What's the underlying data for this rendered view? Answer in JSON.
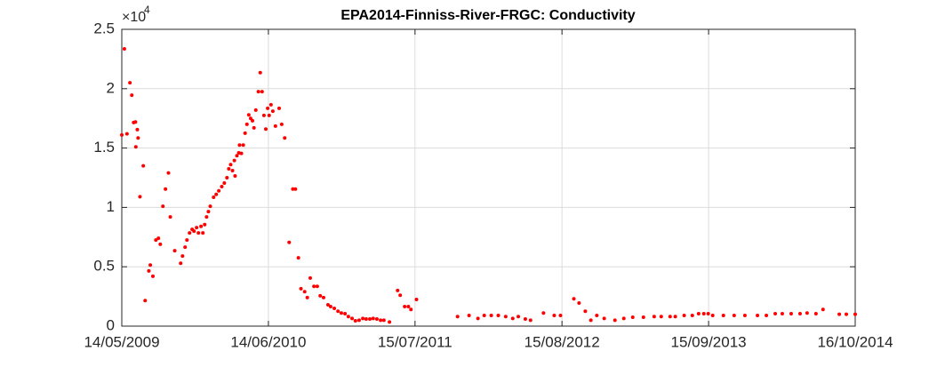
{
  "chart_data": {
    "type": "scatter",
    "title": "EPA2014-Finniss-River-FRGC: Conductivity",
    "y_scale_base": "×10",
    "y_scale_exponent": "4",
    "color": "#ff0000",
    "grid": true,
    "ylim": [
      0,
      25000
    ],
    "yticks": [
      0,
      {
        "value": 5000,
        "label": "0.5"
      },
      {
        "value": 10000,
        "label": "1"
      },
      {
        "value": 15000,
        "label": "1.5"
      },
      {
        "value": 20000,
        "label": "2"
      },
      {
        "value": 25000,
        "label": "2.5"
      }
    ],
    "xlim": [
      "2009-05-14",
      "2014-10-16"
    ],
    "xticks": [
      {
        "value": "2009-05-14",
        "label": "14/05/2009"
      },
      {
        "value": "2010-06-14",
        "label": "14/06/2010"
      },
      {
        "value": "2011-07-15",
        "label": "15/07/2011"
      },
      {
        "value": "2012-08-15",
        "label": "15/08/2012"
      },
      {
        "value": "2013-09-15",
        "label": "15/09/2013"
      },
      {
        "value": "2014-10-16",
        "label": "16/10/2014"
      }
    ],
    "x": [
      "2009-05-14",
      "2009-05-21",
      "2009-05-28",
      "2009-06-05",
      "2009-06-10",
      "2009-06-15",
      "2009-06-20",
      "2009-06-21",
      "2009-06-25",
      "2009-06-27",
      "2009-07-02",
      "2009-07-11",
      "2009-07-16",
      "2009-07-26",
      "2009-07-30",
      "2009-08-06",
      "2009-08-14",
      "2009-08-21",
      "2009-08-26",
      "2009-09-02",
      "2009-09-09",
      "2009-09-17",
      "2009-09-22",
      "2009-10-04",
      "2009-10-20",
      "2009-10-25",
      "2009-11-01",
      "2009-11-06",
      "2009-11-13",
      "2009-11-20",
      "2009-11-25",
      "2009-12-02",
      "2009-12-07",
      "2009-12-14",
      "2009-12-19",
      "2009-12-24",
      "2009-12-29",
      "2010-01-03",
      "2010-01-08",
      "2010-01-17",
      "2010-01-24",
      "2010-01-31",
      "2010-02-08",
      "2010-02-15",
      "2010-02-22",
      "2010-02-27",
      "2010-03-04",
      "2010-03-09",
      "2010-03-14",
      "2010-03-16",
      "2010-03-21",
      "2010-03-26",
      "2010-03-28",
      "2010-04-02",
      "2010-04-07",
      "2010-04-12",
      "2010-04-17",
      "2010-04-22",
      "2010-04-27",
      "2010-05-02",
      "2010-05-06",
      "2010-05-11",
      "2010-05-18",
      "2010-05-23",
      "2010-05-28",
      "2010-06-02",
      "2010-06-07",
      "2010-06-12",
      "2010-06-16",
      "2010-06-21",
      "2010-06-26",
      "2010-07-03",
      "2010-07-13",
      "2010-07-20",
      "2010-07-28",
      "2010-08-09",
      "2010-08-19",
      "2010-08-26",
      "2010-09-03",
      "2010-09-10",
      "2010-09-20",
      "2010-09-27",
      "2010-10-05",
      "2010-10-15",
      "2010-10-24",
      "2010-11-01",
      "2010-11-10",
      "2010-11-22",
      "2010-11-29",
      "2010-12-09",
      "2010-12-19",
      "2010-12-28",
      "2011-01-07",
      "2011-01-16",
      "2011-01-26",
      "2011-02-04",
      "2011-02-14",
      "2011-02-24",
      "2011-03-05",
      "2011-03-15",
      "2011-03-24",
      "2011-04-03",
      "2011-04-13",
      "2011-04-22",
      "2011-05-07",
      "2011-05-29",
      "2011-06-05",
      "2011-06-17",
      "2011-06-27",
      "2011-07-04",
      "2011-07-19",
      "2011-11-07",
      "2011-12-08",
      "2012-01-01",
      "2012-01-18",
      "2012-02-06",
      "2012-02-25",
      "2012-03-16",
      "2012-04-04",
      "2012-04-19",
      "2012-05-08",
      "2012-05-22",
      "2012-06-26",
      "2012-07-25",
      "2012-08-11",
      "2012-09-16",
      "2012-09-30",
      "2012-10-17",
      "2012-11-01",
      "2012-11-17",
      "2012-12-07",
      "2013-01-05",
      "2013-01-29",
      "2013-02-22",
      "2013-03-23",
      "2013-04-21",
      "2013-05-10",
      "2013-06-03",
      "2013-06-17",
      "2013-07-11",
      "2013-08-02",
      "2013-08-19",
      "2013-09-02",
      "2013-09-14",
      "2013-09-26",
      "2013-10-25",
      "2013-11-23",
      "2013-12-22",
      "2014-01-25",
      "2014-02-18",
      "2014-03-14",
      "2014-04-02",
      "2014-04-26",
      "2014-05-20",
      "2014-06-08",
      "2014-07-02",
      "2014-07-21",
      "2014-09-03",
      "2014-09-22",
      "2014-10-16"
    ],
    "values": [
      16100,
      23350,
      16200,
      20500,
      19450,
      17150,
      17200,
      15100,
      16550,
      15850,
      10900,
      13500,
      2150,
      4650,
      5150,
      4200,
      7250,
      7400,
      6900,
      10100,
      11550,
      12900,
      9200,
      6350,
      5300,
      5900,
      6650,
      7250,
      7850,
      8150,
      8000,
      8300,
      7850,
      8400,
      7850,
      8550,
      9200,
      9650,
      10100,
      10850,
      11100,
      11400,
      11750,
      12050,
      12500,
      13250,
      13600,
      13100,
      13950,
      12650,
      14350,
      14600,
      15250,
      14550,
      15250,
      16250,
      17000,
      17800,
      17500,
      17300,
      16700,
      18200,
      19750,
      21350,
      19750,
      17750,
      16600,
      18350,
      17750,
      18650,
      18100,
      16850,
      18350,
      17000,
      15850,
      7050,
      11550,
      11550,
      5750,
      3150,
      2900,
      2400,
      4050,
      3350,
      3350,
      2550,
      2400,
      1800,
      1650,
      1500,
      1250,
      1100,
      1050,
      800,
      650,
      450,
      500,
      650,
      600,
      600,
      650,
      600,
      500,
      500,
      350,
      3000,
      2600,
      1650,
      1650,
      1400,
      2250,
      800,
      900,
      650,
      900,
      900,
      900,
      800,
      650,
      800,
      600,
      500,
      1100,
      900,
      900,
      2300,
      1950,
      1250,
      500,
      900,
      650,
      500,
      650,
      750,
      750,
      800,
      800,
      800,
      800,
      900,
      900,
      1050,
      1050,
      1050,
      900,
      900,
      900,
      900,
      900,
      900,
      1050,
      1050,
      1050,
      1050,
      1100,
      1050,
      1400,
      1000,
      1000,
      1000
    ]
  }
}
